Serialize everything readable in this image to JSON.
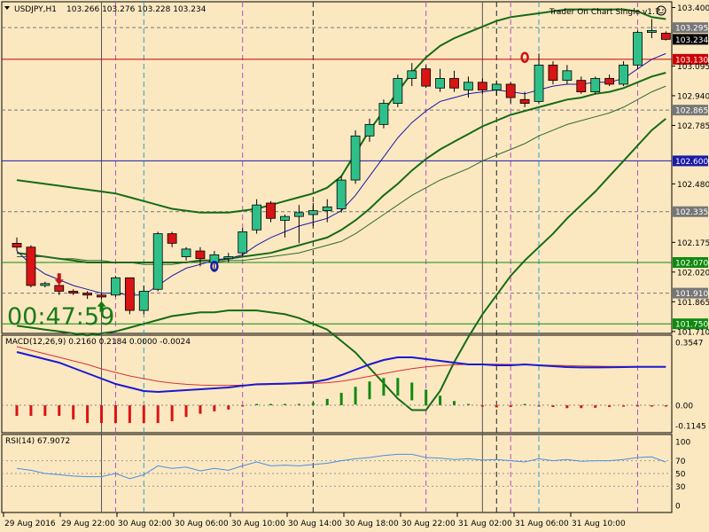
{
  "chart_data": {
    "type": "candlestick",
    "header": {
      "symbol_label": "USDJPY,H1",
      "ohlc_label": "103.266 103.276 103.228 103.234",
      "ea_label": "Trader On Chart Single v1.7",
      "timer": "00:47:59"
    },
    "price_axis": {
      "ylim": [
        101.7,
        103.43
      ],
      "ticks": [
        103.4,
        103.095,
        102.94,
        102.785,
        102.48,
        102.175,
        102.02,
        101.865,
        101.71
      ],
      "tick_labels": [
        "103.400",
        "103.095",
        "102.940",
        "102.785",
        "102.480",
        "102.175",
        "102.020",
        "101.865",
        "101.710"
      ],
      "current_price": "103.234"
    },
    "horizontal_levels": [
      {
        "price": 103.295,
        "label": "103.295",
        "style": "dashed",
        "color": "#777777"
      },
      {
        "price": 103.13,
        "label": "103.130",
        "style": "solid",
        "color": "#cc0000"
      },
      {
        "price": 102.865,
        "label": "102.865",
        "style": "dashed",
        "color": "#777777"
      },
      {
        "price": 102.6,
        "label": "102.600",
        "style": "solid",
        "color": "#1a1aa8"
      },
      {
        "price": 102.335,
        "label": "102.335",
        "style": "dashed",
        "color": "#777777"
      },
      {
        "price": 102.07,
        "label": "102.070",
        "style": "solid",
        "color": "#0f8a0f"
      },
      {
        "price": 101.91,
        "label": "101.910",
        "style": "dashed",
        "color": "#777777"
      },
      {
        "price": 101.75,
        "label": "101.750",
        "style": "solid",
        "color": "#0f8a0f"
      }
    ],
    "time_axis": {
      "labels": [
        "29 Aug 2016",
        "29 Aug 22:00",
        "30 Aug 02:00",
        "30 Aug 06:00",
        "30 Aug 10:00",
        "30 Aug 14:00",
        "30 Aug 18:00",
        "30 Aug 22:00",
        "31 Aug 02:00",
        "31 Aug 06:00",
        "31 Aug 10:00"
      ]
    },
    "candles": [
      {
        "o": 102.17,
        "h": 102.2,
        "l": 102.13,
        "c": 102.15
      },
      {
        "o": 102.15,
        "h": 102.16,
        "l": 101.94,
        "c": 101.95
      },
      {
        "o": 101.95,
        "h": 101.97,
        "l": 101.94,
        "c": 101.96
      },
      {
        "o": 101.95,
        "h": 101.96,
        "l": 101.9,
        "c": 101.92
      },
      {
        "o": 101.92,
        "h": 101.93,
        "l": 101.9,
        "c": 101.91
      },
      {
        "o": 101.91,
        "h": 101.92,
        "l": 101.88,
        "c": 101.9
      },
      {
        "o": 101.9,
        "h": 101.91,
        "l": 101.88,
        "c": 101.89
      },
      {
        "o": 101.9,
        "h": 102.0,
        "l": 101.89,
        "c": 101.99
      },
      {
        "o": 101.99,
        "h": 101.99,
        "l": 101.8,
        "c": 101.82
      },
      {
        "o": 101.82,
        "h": 101.95,
        "l": 101.8,
        "c": 101.92
      },
      {
        "o": 101.93,
        "h": 102.23,
        "l": 101.92,
        "c": 102.22
      },
      {
        "o": 102.22,
        "h": 102.23,
        "l": 102.15,
        "c": 102.17
      },
      {
        "o": 102.1,
        "h": 102.15,
        "l": 102.08,
        "c": 102.14
      },
      {
        "o": 102.13,
        "h": 102.15,
        "l": 102.05,
        "c": 102.09
      },
      {
        "o": 102.07,
        "h": 102.13,
        "l": 102.02,
        "c": 102.11
      },
      {
        "o": 102.09,
        "h": 102.12,
        "l": 102.07,
        "c": 102.1
      },
      {
        "o": 102.12,
        "h": 102.25,
        "l": 102.1,
        "c": 102.23
      },
      {
        "o": 102.24,
        "h": 102.4,
        "l": 102.22,
        "c": 102.37
      },
      {
        "o": 102.38,
        "h": 102.39,
        "l": 102.28,
        "c": 102.3
      },
      {
        "o": 102.29,
        "h": 102.32,
        "l": 102.2,
        "c": 102.31
      },
      {
        "o": 102.31,
        "h": 102.37,
        "l": 102.17,
        "c": 102.33
      },
      {
        "o": 102.32,
        "h": 102.38,
        "l": 102.26,
        "c": 102.34
      },
      {
        "o": 102.34,
        "h": 102.4,
        "l": 102.28,
        "c": 102.36
      },
      {
        "o": 102.35,
        "h": 102.52,
        "l": 102.33,
        "c": 102.5
      },
      {
        "o": 102.5,
        "h": 102.76,
        "l": 102.48,
        "c": 102.73
      },
      {
        "o": 102.73,
        "h": 102.82,
        "l": 102.7,
        "c": 102.79
      },
      {
        "o": 102.79,
        "h": 102.92,
        "l": 102.77,
        "c": 102.9
      },
      {
        "o": 102.9,
        "h": 103.05,
        "l": 102.88,
        "c": 103.03
      },
      {
        "o": 103.03,
        "h": 103.11,
        "l": 102.99,
        "c": 103.07
      },
      {
        "o": 103.08,
        "h": 103.1,
        "l": 102.98,
        "c": 102.99
      },
      {
        "o": 102.98,
        "h": 103.08,
        "l": 102.96,
        "c": 103.03
      },
      {
        "o": 103.03,
        "h": 103.07,
        "l": 102.96,
        "c": 102.98
      },
      {
        "o": 102.97,
        "h": 103.04,
        "l": 102.93,
        "c": 103.01
      },
      {
        "o": 103.01,
        "h": 103.03,
        "l": 102.95,
        "c": 102.97
      },
      {
        "o": 102.97,
        "h": 103.02,
        "l": 102.94,
        "c": 103.0
      },
      {
        "o": 103.0,
        "h": 103.01,
        "l": 102.9,
        "c": 102.93
      },
      {
        "o": 102.92,
        "h": 102.96,
        "l": 102.88,
        "c": 102.9
      },
      {
        "o": 102.91,
        "h": 103.16,
        "l": 102.9,
        "c": 103.1
      },
      {
        "o": 103.1,
        "h": 103.12,
        "l": 103.0,
        "c": 103.02
      },
      {
        "o": 103.02,
        "h": 103.1,
        "l": 103.0,
        "c": 103.07
      },
      {
        "o": 103.02,
        "h": 103.04,
        "l": 102.95,
        "c": 102.96
      },
      {
        "o": 102.96,
        "h": 103.04,
        "l": 102.95,
        "c": 103.03
      },
      {
        "o": 103.03,
        "h": 103.05,
        "l": 102.99,
        "c": 103.0
      },
      {
        "o": 103.0,
        "h": 103.12,
        "l": 102.99,
        "c": 103.1
      },
      {
        "o": 103.1,
        "h": 103.28,
        "l": 103.08,
        "c": 103.27
      },
      {
        "o": 103.27,
        "h": 103.34,
        "l": 103.24,
        "c": 103.28
      },
      {
        "o": 103.266,
        "h": 103.276,
        "l": 103.228,
        "c": 103.234
      }
    ],
    "ma_fast": [
      102.13,
      102.06,
      102.01,
      101.98,
      101.95,
      101.93,
      101.91,
      101.91,
      101.9,
      101.9,
      101.95,
      102.0,
      102.04,
      102.06,
      102.08,
      102.09,
      102.11,
      102.16,
      102.2,
      102.23,
      102.26,
      102.28,
      102.3,
      102.34,
      102.42,
      102.52,
      102.62,
      102.72,
      102.8,
      102.86,
      102.91,
      102.93,
      102.95,
      102.96,
      102.97,
      102.96,
      102.95,
      102.97,
      102.99,
      103.0,
      103.0,
      103.01,
      103.01,
      103.03,
      103.08,
      103.13,
      103.16
    ],
    "ma_slow": [
      102.1,
      102.1,
      102.1,
      102.09,
      102.09,
      102.08,
      102.08,
      102.07,
      102.07,
      102.06,
      102.06,
      102.06,
      102.07,
      102.07,
      102.07,
      102.08,
      102.08,
      102.09,
      102.1,
      102.11,
      102.12,
      102.14,
      102.16,
      102.18,
      102.22,
      102.27,
      102.32,
      102.37,
      102.42,
      102.46,
      102.5,
      102.53,
      102.56,
      102.6,
      102.63,
      102.66,
      102.69,
      102.73,
      102.76,
      102.79,
      102.81,
      102.83,
      102.85,
      102.88,
      102.92,
      102.96,
      102.99
    ],
    "bb_upper": [
      102.5,
      102.49,
      102.48,
      102.47,
      102.46,
      102.45,
      102.44,
      102.43,
      102.41,
      102.39,
      102.37,
      102.35,
      102.34,
      102.33,
      102.33,
      102.33,
      102.34,
      102.35,
      102.37,
      102.39,
      102.41,
      102.43,
      102.46,
      102.52,
      102.64,
      102.76,
      102.86,
      102.96,
      103.06,
      103.14,
      103.2,
      103.24,
      103.27,
      103.3,
      103.33,
      103.35,
      103.36,
      103.37,
      103.38,
      103.39,
      103.39,
      103.39,
      103.39,
      103.39,
      103.38,
      103.35,
      103.34
    ],
    "bb_middle": [
      102.12,
      102.11,
      102.1,
      102.09,
      102.08,
      102.07,
      102.07,
      102.07,
      102.07,
      102.07,
      102.07,
      102.07,
      102.07,
      102.08,
      102.08,
      102.09,
      102.1,
      102.11,
      102.12,
      102.14,
      102.16,
      102.18,
      102.2,
      102.24,
      102.29,
      102.35,
      102.42,
      102.48,
      102.55,
      102.61,
      102.66,
      102.7,
      102.74,
      102.78,
      102.81,
      102.84,
      102.86,
      102.88,
      102.9,
      102.92,
      102.93,
      102.95,
      102.96,
      102.98,
      103.01,
      103.04,
      103.06
    ],
    "bb_lower": [
      101.74,
      101.73,
      101.72,
      101.71,
      101.7,
      101.69,
      101.7,
      101.71,
      101.73,
      101.75,
      101.77,
      101.79,
      101.8,
      101.81,
      101.81,
      101.82,
      101.82,
      101.82,
      101.81,
      101.8,
      101.78,
      101.75,
      101.72,
      101.66,
      101.6,
      101.52,
      101.44,
      101.36,
      101.3,
      101.3,
      101.4,
      101.55,
      101.68,
      101.8,
      101.9,
      102.0,
      102.08,
      102.15,
      102.22,
      102.3,
      102.37,
      102.44,
      102.52,
      102.6,
      102.68,
      102.76,
      102.82
    ],
    "markers": [
      {
        "type": "arrow-down",
        "index": 3,
        "price": 101.99,
        "color": "#cc1111"
      },
      {
        "type": "arrow-up",
        "index": 6,
        "price": 101.84,
        "color": "#0f7a0f"
      },
      {
        "type": "circle",
        "index": 14,
        "price": 102.05,
        "color": "#1a1aa8"
      },
      {
        "type": "circle",
        "index": 36,
        "price": 103.14,
        "color": "#cc1111"
      }
    ],
    "vertical_lines": [
      {
        "index": 6,
        "color": "#555555",
        "style": "solid"
      },
      {
        "index": 7,
        "color": "#b14fc5",
        "style": "dashed"
      },
      {
        "index": 9,
        "color": "#2aa0c8",
        "style": "dashed"
      },
      {
        "index": 16,
        "color": "#b14fc5",
        "style": "dashed"
      },
      {
        "index": 21,
        "color": "#222222",
        "style": "dashed"
      },
      {
        "index": 29,
        "color": "#b14fc5",
        "style": "dashed"
      },
      {
        "index": 33,
        "color": "#555555",
        "style": "solid"
      },
      {
        "index": 34,
        "color": "#222222",
        "style": "dashed"
      },
      {
        "index": 35,
        "color": "#b14fc5",
        "style": "dashed"
      },
      {
        "index": 37,
        "color": "#2aa0c8",
        "style": "dashed"
      },
      {
        "index": 44,
        "color": "#b14fc5",
        "style": "dashed"
      }
    ],
    "macd": {
      "label": "MACD(12,26,9) 0.2160 0.2184 0.0000 -0.0024",
      "ylim": [
        -0.1145,
        0.3547
      ],
      "tick_labels": [
        "0.3547",
        "0.00",
        "-0.1145"
      ],
      "ticks": [
        0.3547,
        0.0,
        -0.1145
      ],
      "main": [
        0.3,
        0.28,
        0.26,
        0.24,
        0.21,
        0.18,
        0.15,
        0.12,
        0.1,
        0.08,
        0.075,
        0.08,
        0.085,
        0.09,
        0.095,
        0.1,
        0.11,
        0.118,
        0.12,
        0.122,
        0.125,
        0.13,
        0.145,
        0.17,
        0.2,
        0.23,
        0.255,
        0.27,
        0.27,
        0.26,
        0.25,
        0.24,
        0.23,
        0.23,
        0.225,
        0.225,
        0.23,
        0.225,
        0.22,
        0.215,
        0.213,
        0.213,
        0.214,
        0.215,
        0.216,
        0.216,
        0.216
      ],
      "signal": [
        0.33,
        0.31,
        0.29,
        0.27,
        0.25,
        0.23,
        0.205,
        0.185,
        0.165,
        0.15,
        0.135,
        0.125,
        0.118,
        0.114,
        0.112,
        0.112,
        0.113,
        0.115,
        0.117,
        0.119,
        0.121,
        0.123,
        0.127,
        0.135,
        0.148,
        0.163,
        0.178,
        0.193,
        0.206,
        0.216,
        0.223,
        0.228,
        0.23,
        0.231,
        0.231,
        0.23,
        0.229,
        0.227,
        0.225,
        0.223,
        0.221,
        0.22,
        0.219,
        0.219,
        0.218,
        0.218,
        0.218
      ]
    },
    "rsi": {
      "label": "RSI(14) 67.9072",
      "ylim": [
        0,
        100
      ],
      "ticks": [
        100,
        70,
        50,
        30,
        0
      ],
      "tick_labels": [
        "100",
        "70",
        "50",
        "30",
        "0"
      ],
      "values": [
        58,
        55,
        50,
        48,
        46,
        45,
        45,
        50,
        42,
        48,
        62,
        58,
        60,
        54,
        58,
        55,
        62,
        68,
        62,
        63,
        62,
        64,
        66,
        70,
        73,
        75,
        78,
        80,
        80,
        75,
        74,
        72,
        73,
        71,
        72,
        70,
        68,
        73,
        70,
        72,
        69,
        70,
        70,
        72,
        75,
        76,
        67.9
      ]
    }
  }
}
